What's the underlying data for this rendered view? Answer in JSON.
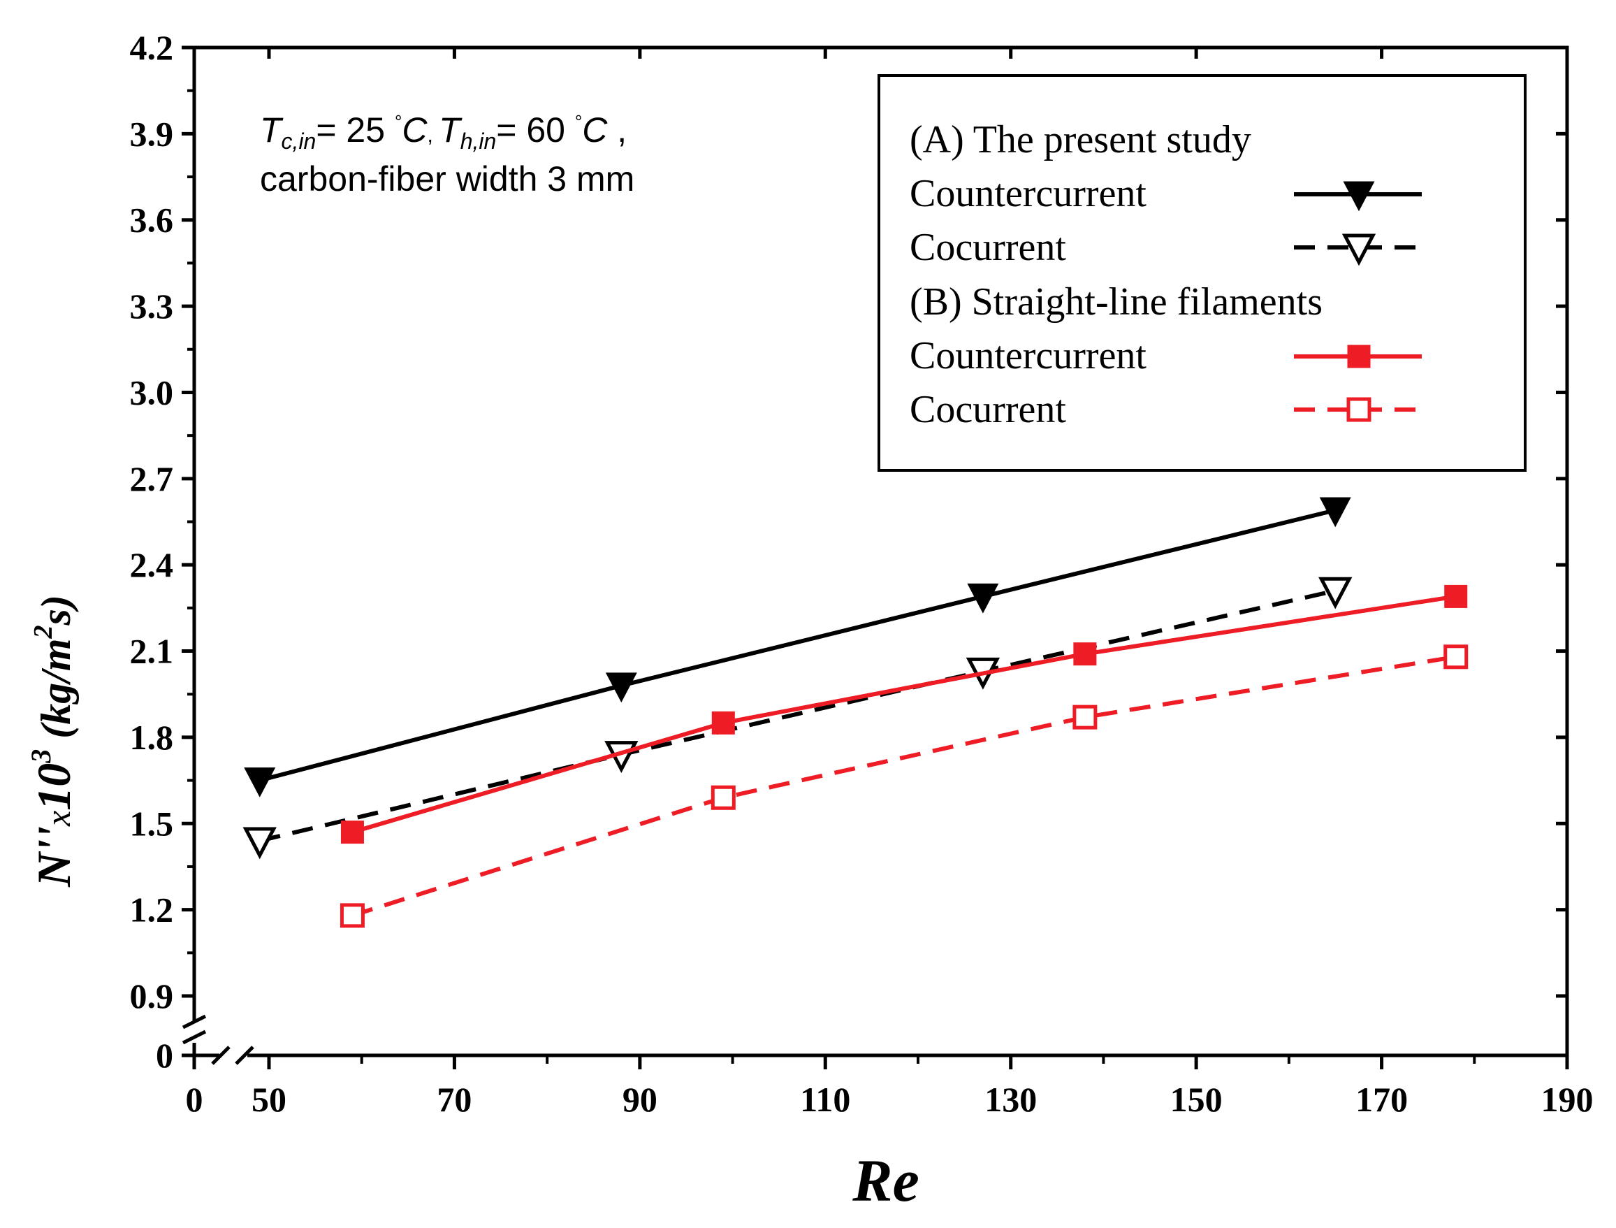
{
  "chart_data": {
    "type": "line",
    "xlabel": "Re",
    "ylabel": {
      "main": "N''",
      "times": "x",
      "base": "10",
      "exp": "3",
      "unit_open": " (kg/m",
      "unit_exp": "2",
      "unit_close": "s)"
    },
    "x_axis_break": true,
    "y_axis_break": true,
    "xlim": [
      40,
      190
    ],
    "ylim": [
      0.6,
      4.2
    ],
    "x_ticks": [
      {
        "value": 0,
        "label": "0",
        "break_side": true
      },
      {
        "value": 50,
        "label": "50"
      },
      {
        "value": 70,
        "label": "70"
      },
      {
        "value": 90,
        "label": "90"
      },
      {
        "value": 110,
        "label": "110"
      },
      {
        "value": 130,
        "label": "130"
      },
      {
        "value": 150,
        "label": "150"
      },
      {
        "value": 170,
        "label": "170"
      },
      {
        "value": 190,
        "label": "190"
      }
    ],
    "y_ticks": [
      {
        "value": 0,
        "label": "0",
        "break_side": true
      },
      {
        "value": 0.9,
        "label": "0.9"
      },
      {
        "value": 1.2,
        "label": "1.2"
      },
      {
        "value": 1.5,
        "label": "1.5"
      },
      {
        "value": 1.8,
        "label": "1.8"
      },
      {
        "value": 2.1,
        "label": "2.1"
      },
      {
        "value": 2.4,
        "label": "2.4"
      },
      {
        "value": 2.7,
        "label": "2.7"
      },
      {
        "value": 3.0,
        "label": "3.0"
      },
      {
        "value": 3.3,
        "label": "3.3"
      },
      {
        "value": 3.6,
        "label": "3.6"
      },
      {
        "value": 3.9,
        "label": "3.9"
      },
      {
        "value": 4.2,
        "label": "4.2"
      }
    ],
    "annotation": {
      "line1": {
        "T1": "T",
        "sub1": "c,in",
        "mid": "= 25 ",
        "deg1": "°",
        "C1": "C",
        "sep": ", ",
        "T2": "T",
        "sub2": "h,in",
        "mid2": "= 60 ",
        "deg2": "°",
        "C2": "C",
        "tail": " ,"
      },
      "line2": "carbon-fiber width 3 mm"
    },
    "legend_groups": [
      {
        "title": "(A) The present study"
      },
      {
        "title": "(B) Straight-line  filaments"
      }
    ],
    "series": [
      {
        "name": "Countercurrent",
        "group": 0,
        "color": "#000000",
        "dashed": false,
        "marker": "triangle-down-filled",
        "x": [
          49,
          88,
          127,
          165
        ],
        "y": [
          1.65,
          1.98,
          2.29,
          2.59
        ]
      },
      {
        "name": "Cocurrent",
        "group": 0,
        "color": "#000000",
        "dashed": true,
        "marker": "triangle-down-open",
        "x": [
          49,
          88,
          127,
          165
        ],
        "y": [
          1.44,
          1.74,
          2.03,
          2.31
        ]
      },
      {
        "name": "Countercurrent",
        "group": 1,
        "color": "#ee1c25",
        "dashed": false,
        "marker": "square-filled",
        "x": [
          59,
          99,
          138,
          178
        ],
        "y": [
          1.47,
          1.85,
          2.09,
          2.29
        ]
      },
      {
        "name": "Cocurrent",
        "group": 1,
        "color": "#ee1c25",
        "dashed": true,
        "marker": "square-open",
        "x": [
          59,
          99,
          138,
          178
        ],
        "y": [
          1.18,
          1.59,
          1.87,
          2.08
        ]
      }
    ]
  }
}
